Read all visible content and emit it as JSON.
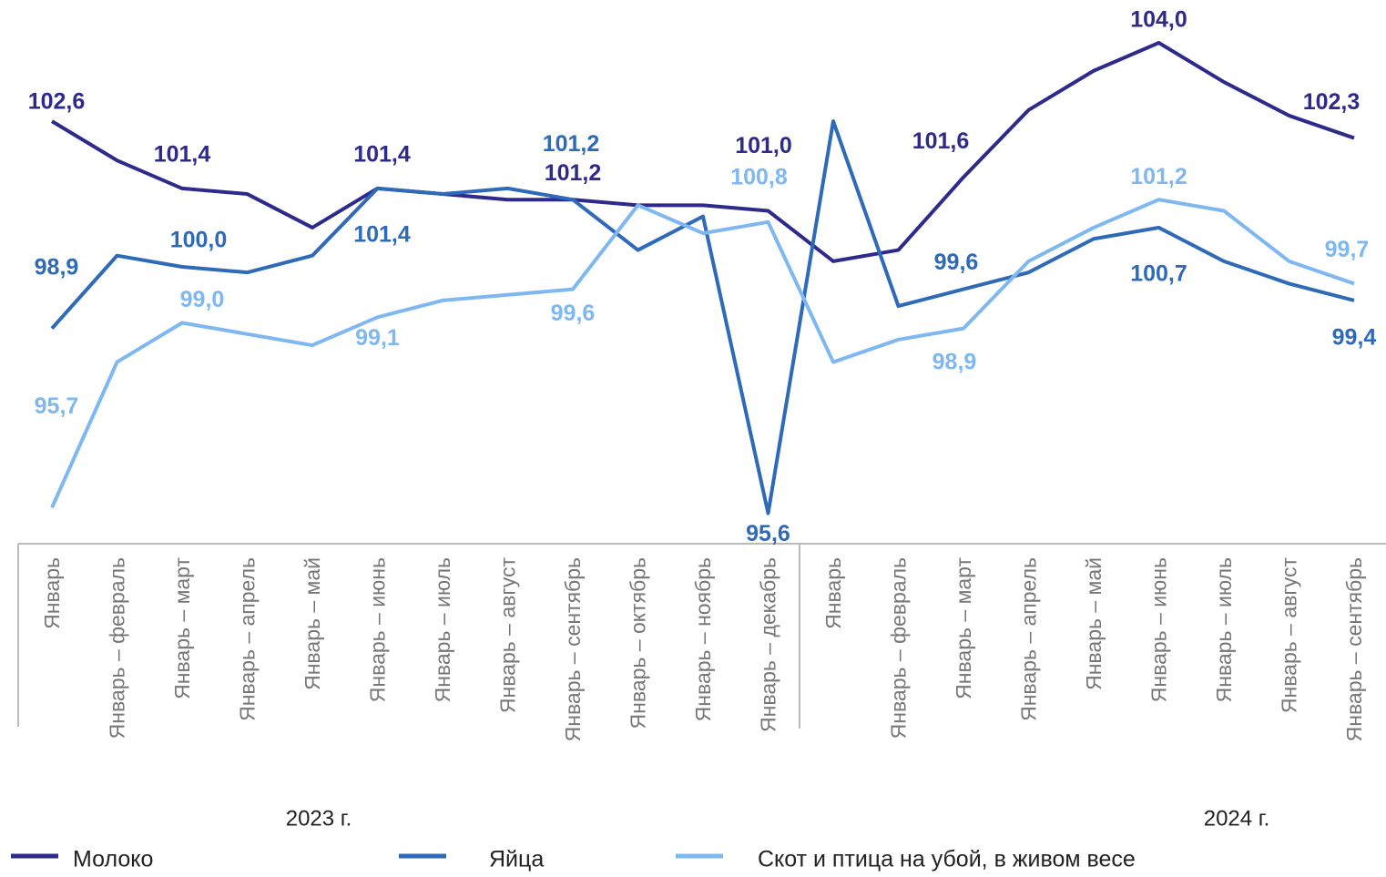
{
  "chart_data": {
    "type": "line",
    "category_groups": [
      {
        "name": "2023 г.",
        "categories": [
          "Январь",
          "Январь – февраль",
          "Январь – март",
          "Январь – апрель",
          "Январь – май",
          "Январь – июнь",
          "Январь – июль",
          "Январь – август",
          "Январь – сентябрь",
          "Январь – октябрь",
          "Январь – ноябрь",
          "Январь – декабрь"
        ]
      },
      {
        "name": "2024 г.",
        "categories": [
          "Январь",
          "Январь – февраль",
          "Январь – март",
          "Январь – апрель",
          "Январь – май",
          "Январь – июнь",
          "Январь – июль",
          "Январь – август",
          "Январь – сентябрь"
        ]
      }
    ],
    "series": [
      {
        "name": "Молоко",
        "color": "#2e2a8c",
        "values": [
          102.6,
          101.9,
          101.4,
          101.3,
          100.7,
          101.4,
          101.3,
          101.2,
          101.2,
          101.1,
          101.1,
          101.0,
          100.1,
          100.3,
          101.6,
          102.8,
          103.5,
          104.0,
          103.3,
          102.7,
          102.3
        ],
        "value_labels": [
          "102,6",
          null,
          "101,4",
          null,
          null,
          "101,4",
          null,
          null,
          "101,2",
          null,
          null,
          "101,0",
          null,
          null,
          "101,6",
          null,
          null,
          "104,0",
          null,
          null,
          "102,3"
        ]
      },
      {
        "name": "Яйца",
        "color": "#2e6ab8",
        "values": [
          98.9,
          100.2,
          100.0,
          99.9,
          100.2,
          101.4,
          101.3,
          101.4,
          101.2,
          100.3,
          100.9,
          95.6,
          102.6,
          99.3,
          99.6,
          99.9,
          100.5,
          100.7,
          100.1,
          99.7,
          99.4
        ],
        "value_labels": [
          "98,9",
          null,
          "100,0",
          null,
          null,
          "101,4",
          null,
          null,
          "101,2",
          null,
          null,
          "95,6",
          null,
          null,
          "99,6",
          null,
          null,
          "100,7",
          null,
          null,
          "99,4"
        ]
      },
      {
        "name": "Скот и птица на убой, в живом весе",
        "color": "#7fb8f0",
        "values": [
          95.7,
          98.3,
          99.0,
          98.8,
          98.6,
          99.1,
          99.4,
          99.5,
          99.6,
          101.1,
          100.6,
          100.8,
          98.3,
          98.7,
          98.9,
          100.1,
          100.7,
          101.2,
          101.0,
          100.1,
          99.7
        ],
        "value_labels": [
          "95,7",
          null,
          "99,0",
          null,
          null,
          "99,1",
          null,
          null,
          "99,6",
          null,
          null,
          "100,8",
          null,
          null,
          "98,9",
          null,
          null,
          "101,2",
          null,
          null,
          "99,7"
        ]
      }
    ]
  }
}
